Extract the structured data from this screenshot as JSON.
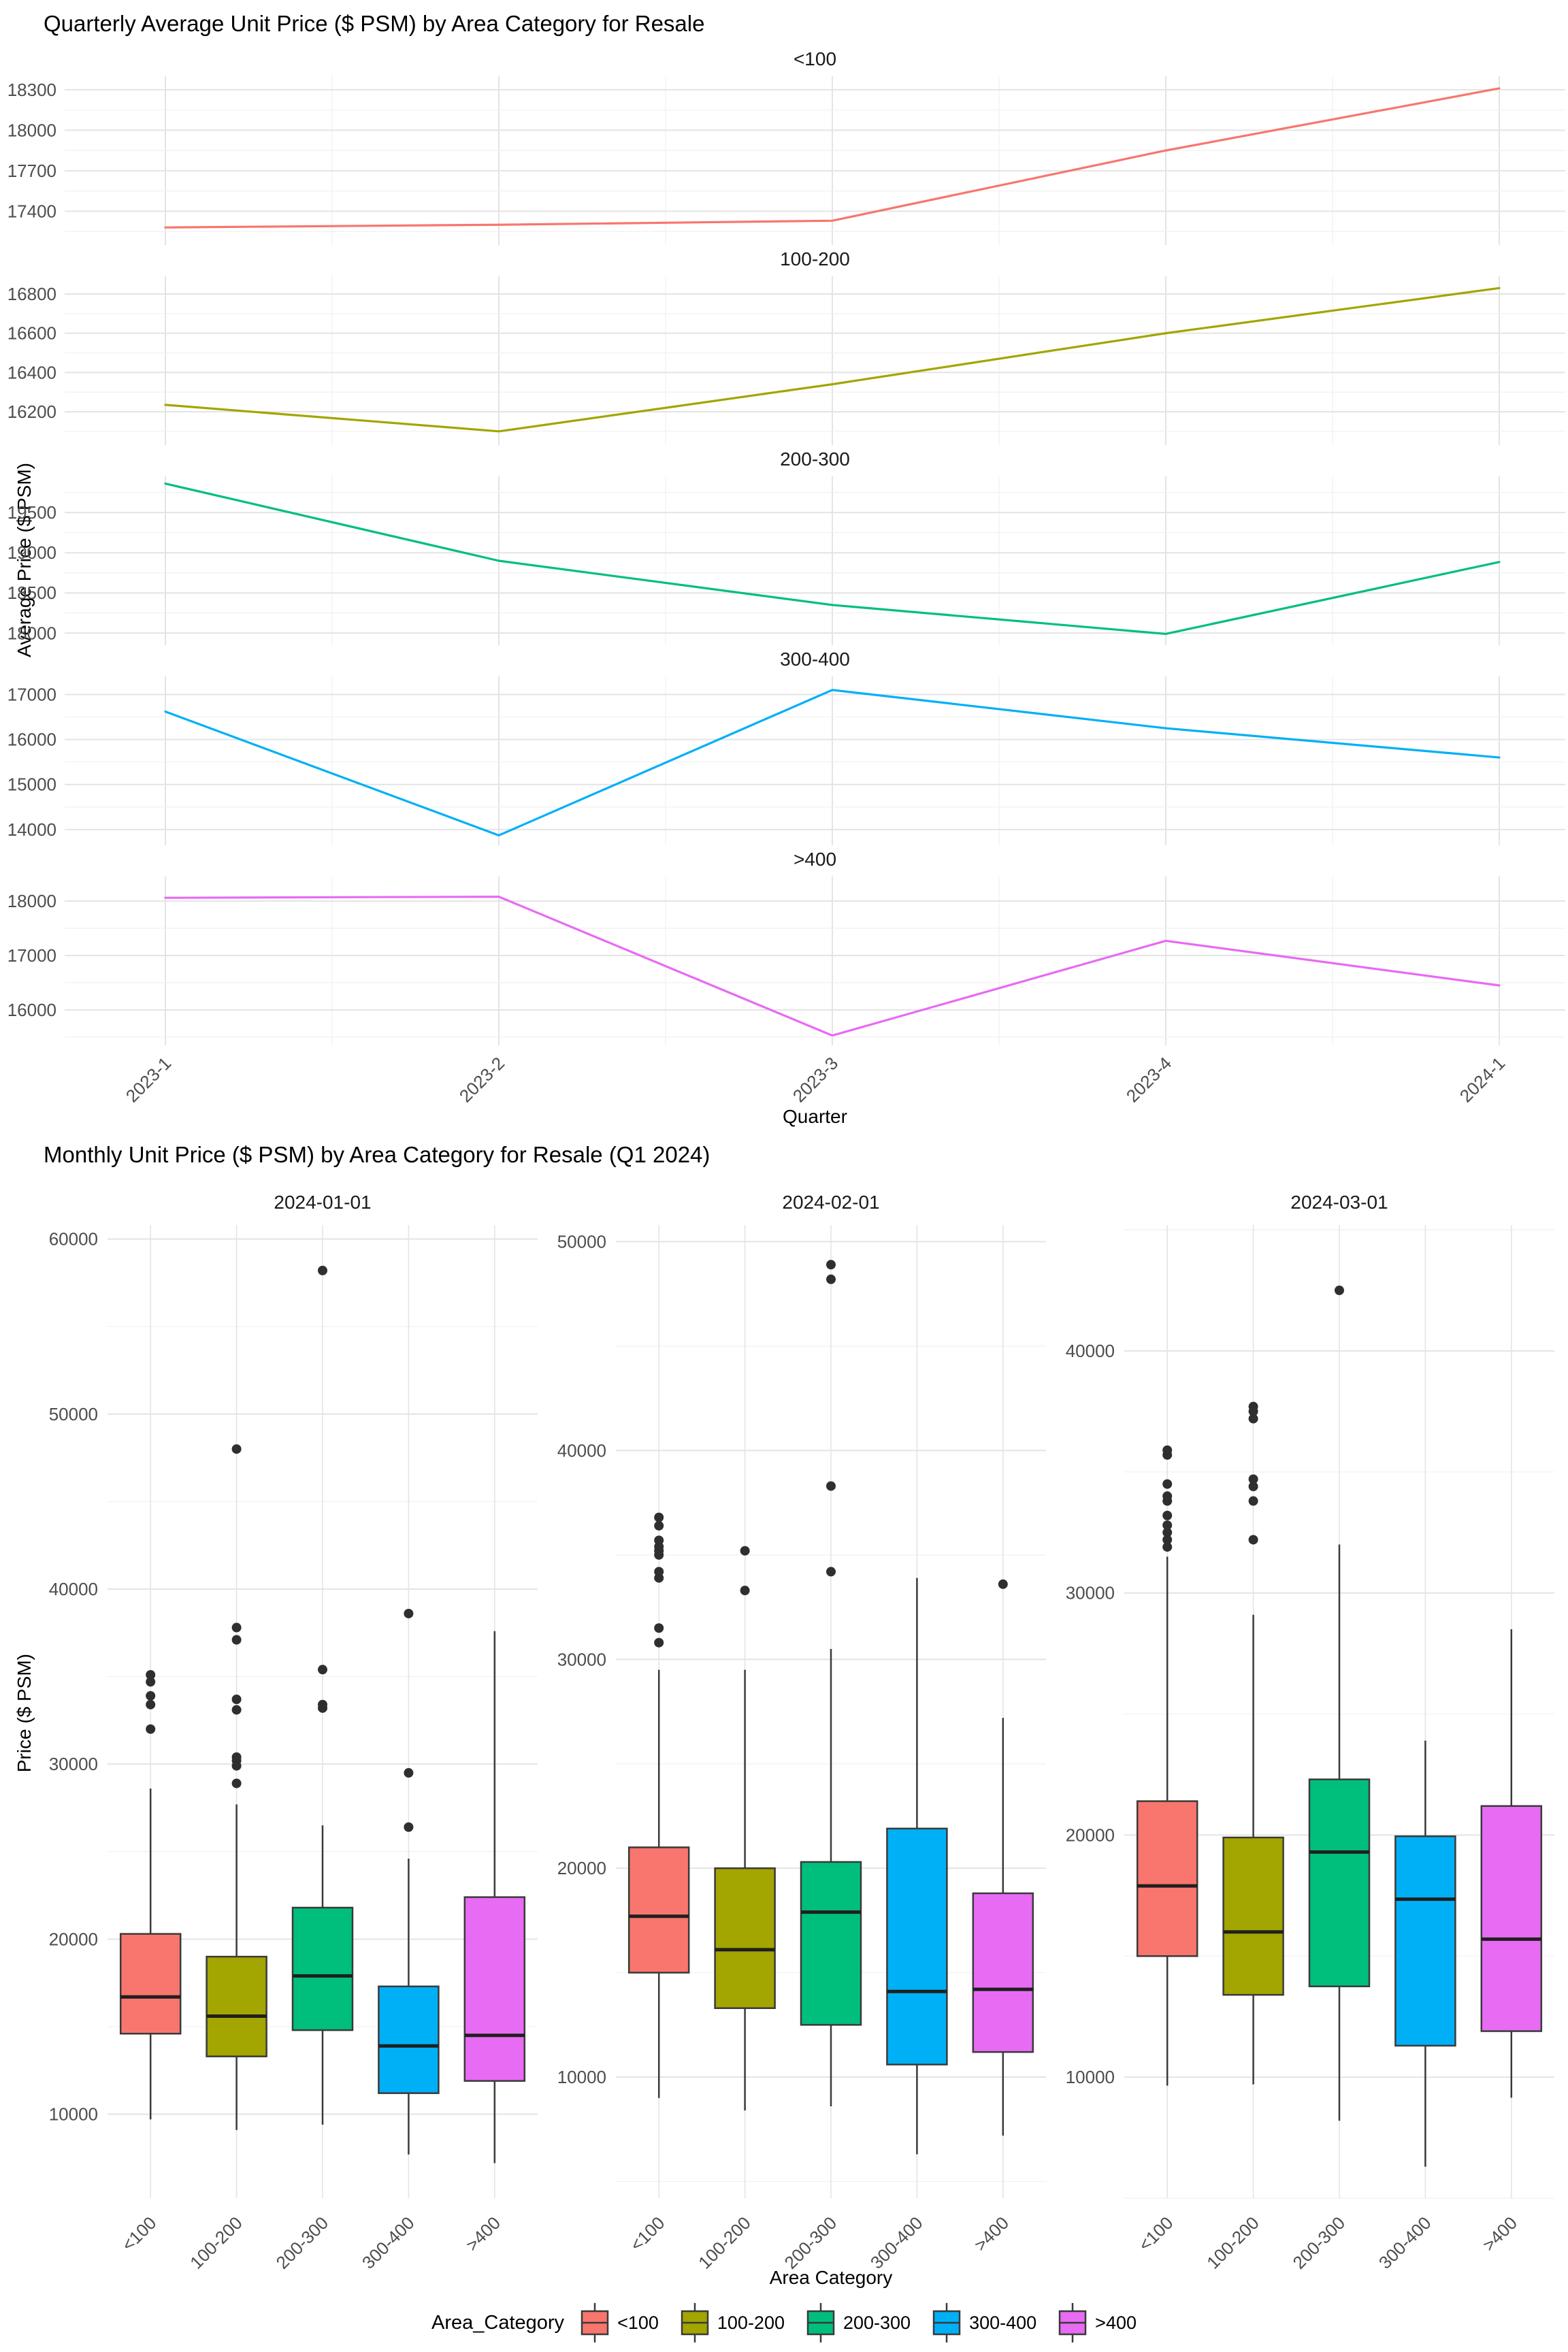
{
  "page": {
    "background": "#FFFFFF"
  },
  "colors": {
    "grid_major": "#E4E4E4",
    "grid_minor": "#F1F1F1",
    "axis_text": "#4D4D4D",
    "strip_text": "#1A1A1A",
    "box_stroke": "#3A3A3A",
    "outlier": "#2F2F2F",
    "median": "#1F1F1F",
    "palette": [
      "#F8766D",
      "#A3A500",
      "#00BF7D",
      "#00B0F6",
      "#E76BF3"
    ]
  },
  "chart_data": [
    {
      "type": "line",
      "title": "Quarterly Average Unit Price ($ PSM) by Area Category for Resale",
      "xlabel": "Quarter",
      "ylabel": "Average Price ($ PSM)",
      "grid": "on",
      "legend_position": "none",
      "x": [
        "2023-1",
        "2023-2",
        "2023-3",
        "2023-4",
        "2024-1"
      ],
      "facets": [
        {
          "label": "<100",
          "color": "#F8766D",
          "values": [
            17280,
            17300,
            17330,
            17850,
            18310
          ],
          "yticks": [
            17400,
            17700,
            18000,
            18300
          ],
          "ydomain": [
            17150,
            18400
          ]
        },
        {
          "label": "100-200",
          "color": "#A3A500",
          "values": [
            16235,
            16100,
            16340,
            16600,
            16830
          ],
          "yticks": [
            16200,
            16400,
            16600,
            16800
          ],
          "ydomain": [
            16030,
            16890
          ]
        },
        {
          "label": "200-300",
          "color": "#00BF7D",
          "values": [
            19860,
            18900,
            18350,
            17990,
            18885
          ],
          "yticks": [
            18000,
            18500,
            19000,
            19500
          ],
          "ydomain": [
            17850,
            19950
          ]
        },
        {
          "label": "300-400",
          "color": "#00B0F6",
          "values": [
            16620,
            13870,
            17100,
            16250,
            15600
          ],
          "yticks": [
            14000,
            15000,
            16000,
            17000
          ],
          "ydomain": [
            13650,
            17400
          ]
        },
        {
          "label": ">400",
          "color": "#E76BF3",
          "values": [
            18060,
            18080,
            15530,
            17270,
            16450
          ],
          "yticks": [
            16000,
            17000,
            18000
          ],
          "ydomain": [
            15350,
            18450
          ]
        }
      ]
    },
    {
      "type": "box",
      "title": "Monthly Unit Price ($ PSM) by Area Category for Resale (Q1 2024)",
      "xlabel": "Area Category",
      "ylabel": "Price ($ PSM)",
      "grid": "on",
      "categories": [
        "<100",
        "100-200",
        "200-300",
        "300-400",
        ">400"
      ],
      "facets": [
        {
          "label": "2024-01-01",
          "yticks": [
            10000,
            20000,
            30000,
            40000,
            50000,
            60000
          ],
          "ydomain": [
            5200,
            60800
          ],
          "boxes": [
            {
              "category": "<100",
              "color": "#F8766D",
              "lo": 9700,
              "q1": 14600,
              "med": 16700,
              "q3": 20300,
              "hi": 28600,
              "outliers": [
                32000,
                33400,
                33900,
                34700,
                35100
              ]
            },
            {
              "category": "100-200",
              "color": "#A3A500",
              "lo": 9100,
              "q1": 13300,
              "med": 15600,
              "q3": 19000,
              "hi": 27700,
              "outliers": [
                28900,
                29900,
                30200,
                30400,
                33100,
                33700,
                37100,
                37800,
                48000
              ]
            },
            {
              "category": "200-300",
              "color": "#00BF7D",
              "lo": 9400,
              "q1": 14800,
              "med": 17900,
              "q3": 21800,
              "hi": 26500,
              "outliers": [
                33200,
                33400,
                35400,
                58200
              ]
            },
            {
              "category": "300-400",
              "color": "#00B0F6",
              "lo": 7700,
              "q1": 11200,
              "med": 13900,
              "q3": 17300,
              "hi": 24600,
              "outliers": [
                26400,
                29500,
                38600
              ]
            },
            {
              "category": ">400",
              "color": "#E76BF3",
              "lo": 7200,
              "q1": 11900,
              "med": 14500,
              "q3": 22400,
              "hi": 37600,
              "outliers": []
            }
          ]
        },
        {
          "label": "2024-02-01",
          "yticks": [
            10000,
            20000,
            30000,
            40000,
            50000
          ],
          "ydomain": [
            4200,
            50800
          ],
          "boxes": [
            {
              "category": "<100",
              "color": "#F8766D",
              "lo": 9000,
              "q1": 15000,
              "med": 17700,
              "q3": 21000,
              "hi": 29500,
              "outliers": [
                30800,
                31500,
                33900,
                34200,
                35000,
                35200,
                35400,
                35700,
                36400,
                36800
              ]
            },
            {
              "category": "100-200",
              "color": "#A3A500",
              "lo": 8400,
              "q1": 13300,
              "med": 16100,
              "q3": 20000,
              "hi": 29500,
              "outliers": [
                33300,
                35200
              ]
            },
            {
              "category": "200-300",
              "color": "#00BF7D",
              "lo": 8600,
              "q1": 12500,
              "med": 17900,
              "q3": 20300,
              "hi": 30500,
              "outliers": [
                34200,
                38300,
                48200,
                48900
              ]
            },
            {
              "category": "300-400",
              "color": "#00B0F6",
              "lo": 6300,
              "q1": 10600,
              "med": 14100,
              "q3": 21900,
              "hi": 33900,
              "outliers": []
            },
            {
              "category": ">400",
              "color": "#E76BF3",
              "lo": 7200,
              "q1": 11200,
              "med": 14200,
              "q3": 18800,
              "hi": 27200,
              "outliers": [
                33600
              ]
            }
          ]
        },
        {
          "label": "2024-03-01",
          "yticks": [
            10000,
            20000,
            30000,
            40000
          ],
          "ydomain": [
            5000,
            45200
          ],
          "boxes": [
            {
              "category": "<100",
              "color": "#F8766D",
              "lo": 9650,
              "q1": 15000,
              "med": 17900,
              "q3": 21400,
              "hi": 31500,
              "outliers": [
                31900,
                32200,
                32500,
                32800,
                33200,
                33800,
                34000,
                34500,
                35700,
                35900
              ]
            },
            {
              "category": "100-200",
              "color": "#A3A500",
              "lo": 9700,
              "q1": 13400,
              "med": 16000,
              "q3": 19900,
              "hi": 29100,
              "outliers": [
                32200,
                33800,
                34400,
                34700,
                37200,
                37500,
                37700
              ]
            },
            {
              "category": "200-300",
              "color": "#00BF7D",
              "lo": 8200,
              "q1": 13750,
              "med": 19300,
              "q3": 22300,
              "hi": 32000,
              "outliers": [
                42500
              ]
            },
            {
              "category": "300-400",
              "color": "#00B0F6",
              "lo": 6300,
              "q1": 11300,
              "med": 17350,
              "q3": 19950,
              "hi": 23900,
              "outliers": []
            },
            {
              "category": ">400",
              "color": "#E76BF3",
              "lo": 9150,
              "q1": 11900,
              "med": 15700,
              "q3": 21200,
              "hi": 28500,
              "outliers": []
            }
          ]
        }
      ],
      "legend": {
        "title": "Area_Category",
        "position": "bottom",
        "items": [
          {
            "label": "<100",
            "color": "#F8766D"
          },
          {
            "label": "100-200",
            "color": "#A3A500"
          },
          {
            "label": "200-300",
            "color": "#00BF7D"
          },
          {
            "label": "300-400",
            "color": "#00B0F6"
          },
          {
            "label": ">400",
            "color": "#E76BF3"
          }
        ]
      }
    }
  ]
}
